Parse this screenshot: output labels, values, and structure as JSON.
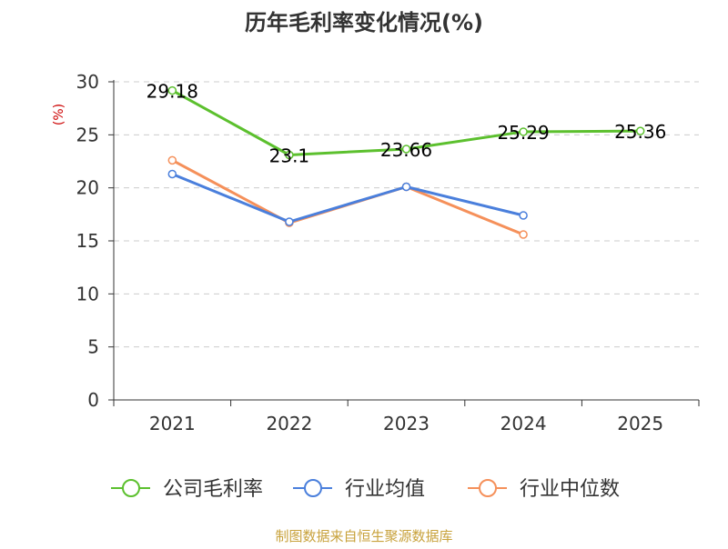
{
  "chart_data": {
    "type": "line",
    "title": "历年毛利率变化情况(%)",
    "ylabel": "(%)",
    "xlabel": "",
    "categories": [
      "2021",
      "2022",
      "2023",
      "2024",
      "2025"
    ],
    "ylim": [
      0,
      30
    ],
    "yticks": [
      0,
      5,
      10,
      15,
      20,
      25,
      30
    ],
    "grid": true,
    "legend_position": "bottom",
    "series": [
      {
        "name": "公司毛利率",
        "color": "#5cc02e",
        "values": [
          29.18,
          23.1,
          23.66,
          25.29,
          25.36
        ],
        "labels": [
          "29.18",
          "23.1",
          "23.66",
          "25.29",
          "25.36"
        ]
      },
      {
        "name": "行业均值",
        "color": "#4a7fdc",
        "values": [
          21.3,
          16.8,
          20.1,
          17.4,
          null
        ]
      },
      {
        "name": "行业中位数",
        "color": "#f5905a",
        "values": [
          22.6,
          16.7,
          20.1,
          15.6,
          null
        ]
      }
    ]
  },
  "source": "制图数据来自恒生聚源数据库",
  "colors": {
    "axis": "#333333",
    "grid": "#cccccc",
    "ylabel": "#cc0000",
    "source": "#c8a23c"
  }
}
